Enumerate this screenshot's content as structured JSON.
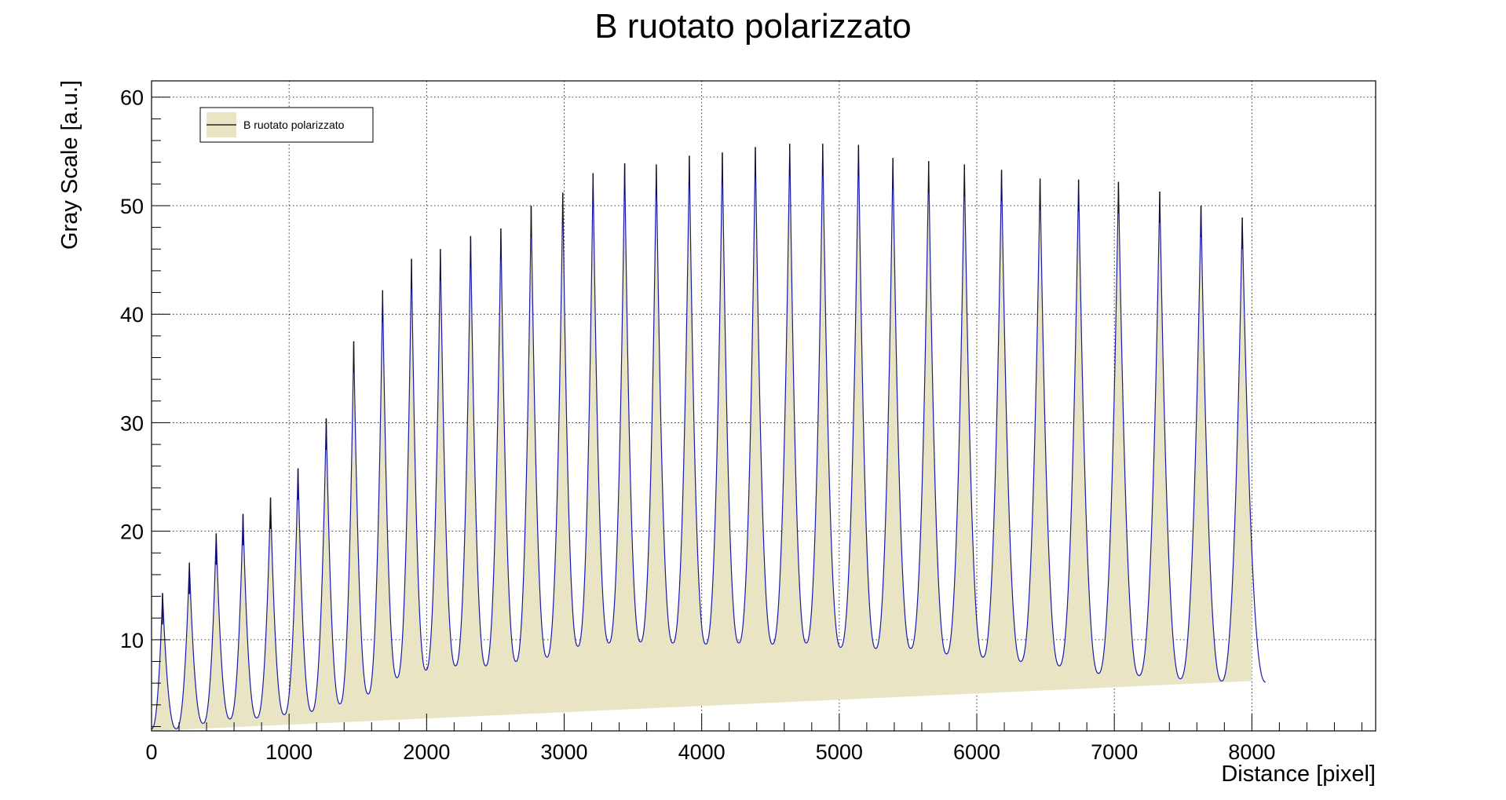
{
  "chart_data": {
    "type": "area",
    "title": "B ruotato polarizzato",
    "xlabel": "Distance [pixel]",
    "ylabel": "Gray Scale [a.u.]",
    "xlim": [
      0,
      8900
    ],
    "ylim": [
      1.6,
      61.5
    ],
    "x_ticks": [
      0,
      1000,
      2000,
      3000,
      4000,
      5000,
      6000,
      7000,
      8000
    ],
    "y_ticks": [
      10,
      20,
      30,
      40,
      50,
      60
    ],
    "x_tick_labels": [
      "0",
      "1000",
      "2000",
      "3000",
      "4000",
      "5000",
      "6000",
      "7000",
      "8000"
    ],
    "y_tick_labels": [
      "10",
      "20",
      "30",
      "40",
      "50",
      "60"
    ],
    "grid": true,
    "legend": {
      "position": "top-left",
      "entries": [
        "B ruotato polarizzato"
      ]
    },
    "series": [
      {
        "name": "B ruotato polarizzato",
        "fill_color": "#e8e4c4",
        "line_color": "#1a1aa8",
        "data_end_x": 8100,
        "fill_baseline": {
          "x": [
            0,
            8000
          ],
          "y": [
            1.6,
            6.2
          ]
        },
        "peaks": [
          {
            "x": 80,
            "y": 14.3
          },
          {
            "x": 275,
            "y": 17.1
          },
          {
            "x": 470,
            "y": 19.8
          },
          {
            "x": 665,
            "y": 21.6
          },
          {
            "x": 865,
            "y": 23.1
          },
          {
            "x": 1065,
            "y": 25.8
          },
          {
            "x": 1270,
            "y": 30.4
          },
          {
            "x": 1470,
            "y": 37.5
          },
          {
            "x": 1680,
            "y": 42.2
          },
          {
            "x": 1890,
            "y": 45.1
          },
          {
            "x": 2100,
            "y": 46.0
          },
          {
            "x": 2320,
            "y": 47.2
          },
          {
            "x": 2540,
            "y": 47.9
          },
          {
            "x": 2760,
            "y": 50.0
          },
          {
            "x": 2990,
            "y": 51.2
          },
          {
            "x": 3210,
            "y": 53.0
          },
          {
            "x": 3440,
            "y": 53.9
          },
          {
            "x": 3670,
            "y": 53.8
          },
          {
            "x": 3910,
            "y": 54.6
          },
          {
            "x": 4150,
            "y": 54.9
          },
          {
            "x": 4390,
            "y": 55.4
          },
          {
            "x": 4640,
            "y": 55.7
          },
          {
            "x": 4880,
            "y": 55.7
          },
          {
            "x": 5140,
            "y": 55.6
          },
          {
            "x": 5390,
            "y": 54.4
          },
          {
            "x": 5650,
            "y": 54.1
          },
          {
            "x": 5910,
            "y": 53.8
          },
          {
            "x": 6180,
            "y": 53.3
          },
          {
            "x": 6460,
            "y": 52.5
          },
          {
            "x": 6740,
            "y": 52.4
          },
          {
            "x": 7030,
            "y": 52.2
          },
          {
            "x": 7330,
            "y": 51.3
          },
          {
            "x": 7630,
            "y": 50.0
          },
          {
            "x": 7930,
            "y": 48.9
          }
        ],
        "valleys": [
          {
            "x": 0,
            "y": 1.8
          },
          {
            "x": 180,
            "y": 1.8
          },
          {
            "x": 375,
            "y": 2.3
          },
          {
            "x": 570,
            "y": 2.7
          },
          {
            "x": 765,
            "y": 2.8
          },
          {
            "x": 965,
            "y": 3.1
          },
          {
            "x": 1165,
            "y": 3.4
          },
          {
            "x": 1370,
            "y": 4.1
          },
          {
            "x": 1575,
            "y": 5.0
          },
          {
            "x": 1785,
            "y": 6.5
          },
          {
            "x": 1995,
            "y": 7.2
          },
          {
            "x": 2210,
            "y": 7.6
          },
          {
            "x": 2430,
            "y": 7.6
          },
          {
            "x": 2650,
            "y": 8.0
          },
          {
            "x": 2875,
            "y": 8.4
          },
          {
            "x": 3100,
            "y": 9.4
          },
          {
            "x": 3325,
            "y": 9.7
          },
          {
            "x": 3555,
            "y": 9.8
          },
          {
            "x": 3790,
            "y": 9.7
          },
          {
            "x": 4030,
            "y": 9.6
          },
          {
            "x": 4270,
            "y": 9.7
          },
          {
            "x": 4515,
            "y": 9.6
          },
          {
            "x": 4760,
            "y": 9.7
          },
          {
            "x": 5010,
            "y": 9.3
          },
          {
            "x": 5265,
            "y": 9.2
          },
          {
            "x": 5520,
            "y": 9.2
          },
          {
            "x": 5780,
            "y": 8.7
          },
          {
            "x": 6045,
            "y": 8.4
          },
          {
            "x": 6320,
            "y": 8.0
          },
          {
            "x": 6600,
            "y": 7.6
          },
          {
            "x": 6885,
            "y": 6.9
          },
          {
            "x": 7180,
            "y": 6.7
          },
          {
            "x": 7480,
            "y": 6.4
          },
          {
            "x": 7780,
            "y": 6.2
          },
          {
            "x": 8100,
            "y": 6.1
          }
        ]
      }
    ]
  }
}
